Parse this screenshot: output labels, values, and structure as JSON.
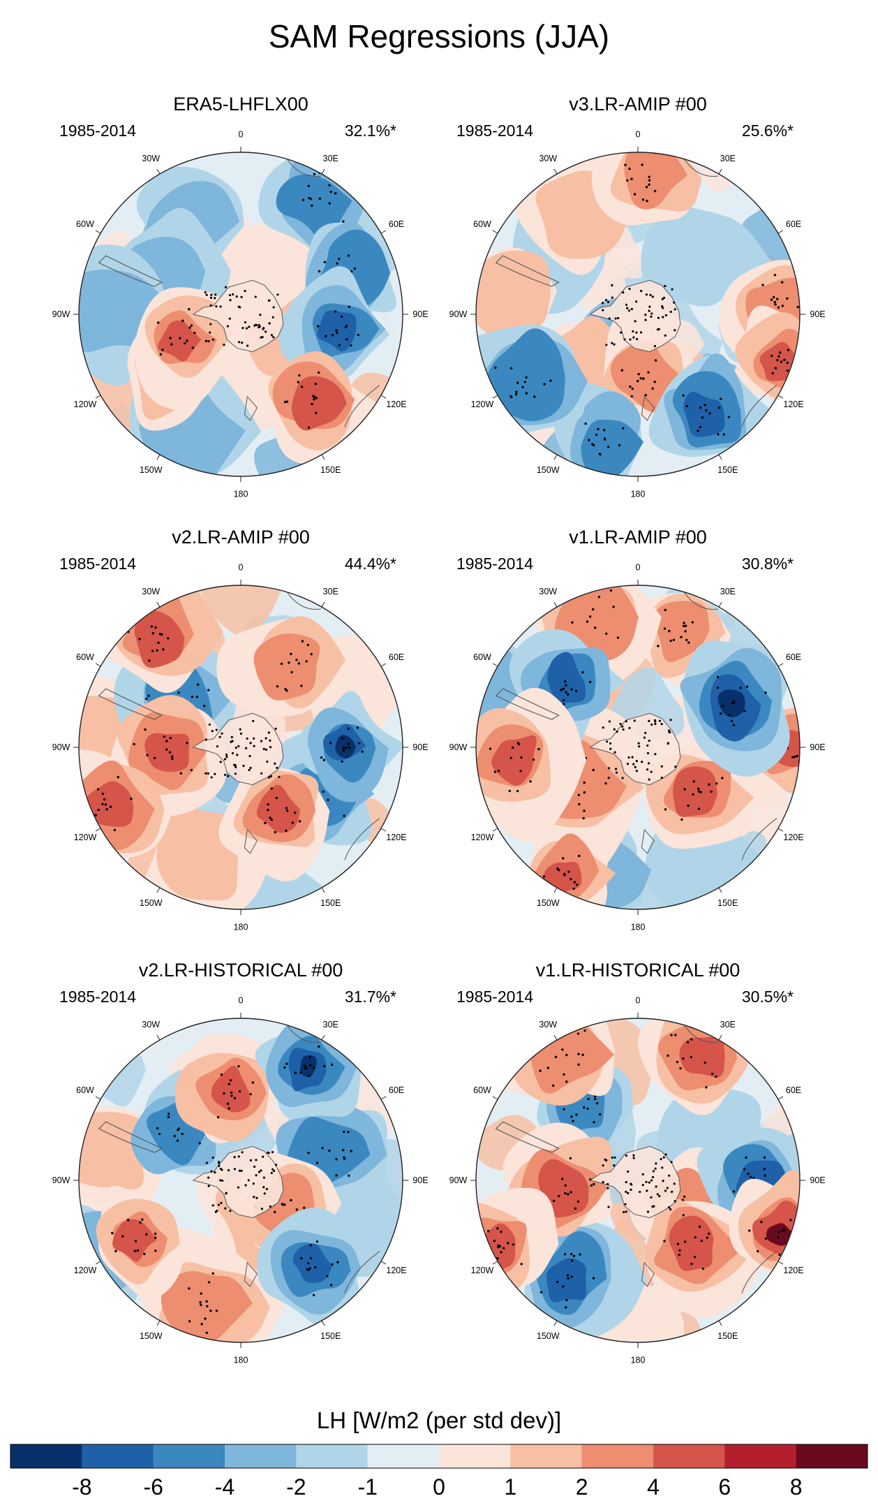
{
  "figure": {
    "title": "SAM Regressions (JJA)"
  },
  "longitude_labels": [
    "0",
    "30E",
    "60E",
    "90E",
    "120E",
    "150E",
    "180",
    "150W",
    "120W",
    "90W",
    "60W",
    "30W"
  ],
  "panels": [
    {
      "title": "ERA5-LHFLX00",
      "period": "1985-2014",
      "variance_explained": "32.1%*",
      "blobs": [
        {
          "lon": 35,
          "r": 0.85,
          "v": -4
        },
        {
          "lon": 70,
          "r": 0.7,
          "v": -4
        },
        {
          "lon": 100,
          "r": 0.6,
          "v": -6
        },
        {
          "lon": 140,
          "r": 0.7,
          "v": 6
        },
        {
          "lon": 110,
          "r": 0.35,
          "v": 2
        },
        {
          "lon": 250,
          "r": 0.4,
          "v": 6
        },
        {
          "lon": 205,
          "r": 0.8,
          "v": -2
        },
        {
          "lon": 330,
          "r": 0.65,
          "v": -2
        },
        {
          "lon": 300,
          "r": 0.5,
          "v": -2
        },
        {
          "lon": 180,
          "r": 0.35,
          "v": 1
        },
        {
          "lon": 270,
          "r": 0.8,
          "v": -2
        },
        {
          "lon": 5,
          "r": 0.3,
          "v": 1
        },
        {
          "lon": 230,
          "r": 0.55,
          "v": 2
        },
        {
          "lon": 45,
          "r": 0.35,
          "v": 1
        }
      ]
    },
    {
      "title": "v3.LR-AMIP  #00",
      "period": "1985-2014",
      "variance_explained": "25.6%*",
      "blobs": [
        {
          "lon": 5,
          "r": 0.85,
          "v": 4
        },
        {
          "lon": 85,
          "r": 0.85,
          "v": 4
        },
        {
          "lon": 110,
          "r": 0.95,
          "v": 6
        },
        {
          "lon": 175,
          "r": 0.4,
          "v": 4
        },
        {
          "lon": 145,
          "r": 0.75,
          "v": -6
        },
        {
          "lon": 195,
          "r": 0.8,
          "v": -4
        },
        {
          "lon": 240,
          "r": 0.8,
          "v": -4
        },
        {
          "lon": 280,
          "r": 0.8,
          "v": 2
        },
        {
          "lon": 330,
          "r": 0.75,
          "v": 2
        },
        {
          "lon": 300,
          "r": 0.55,
          "v": -1
        },
        {
          "lon": 50,
          "r": 0.5,
          "v": -1
        },
        {
          "lon": 230,
          "r": 0.45,
          "v": 2
        }
      ]
    },
    {
      "title": "v2.LR-AMIP  #00",
      "period": "1985-2014",
      "variance_explained": "44.4%*",
      "blobs": [
        {
          "lon": 90,
          "r": 0.65,
          "v": -8
        },
        {
          "lon": 120,
          "r": 0.6,
          "v": -4
        },
        {
          "lon": 150,
          "r": 0.45,
          "v": 6
        },
        {
          "lon": 265,
          "r": 0.45,
          "v": 6
        },
        {
          "lon": 245,
          "r": 0.9,
          "v": 6
        },
        {
          "lon": 325,
          "r": 0.85,
          "v": 6
        },
        {
          "lon": 310,
          "r": 0.5,
          "v": -4
        },
        {
          "lon": 30,
          "r": 0.6,
          "v": 4
        },
        {
          "lon": 200,
          "r": 0.75,
          "v": 2
        },
        {
          "lon": 180,
          "r": 0.85,
          "v": -1
        },
        {
          "lon": 60,
          "r": 0.8,
          "v": 1
        },
        {
          "lon": 280,
          "r": 0.85,
          "v": 2
        }
      ]
    },
    {
      "title": "v1.LR-AMIP  #00",
      "period": "1985-2014",
      "variance_explained": "30.8%*",
      "blobs": [
        {
          "lon": 65,
          "r": 0.65,
          "v": -8
        },
        {
          "lon": 90,
          "r": 0.9,
          "v": 6
        },
        {
          "lon": 130,
          "r": 0.45,
          "v": 6
        },
        {
          "lon": 310,
          "r": 0.6,
          "v": -6
        },
        {
          "lon": 265,
          "r": 0.75,
          "v": 6
        },
        {
          "lon": 235,
          "r": 0.45,
          "v": 4
        },
        {
          "lon": 200,
          "r": 0.8,
          "v": -2
        },
        {
          "lon": 150,
          "r": 0.8,
          "v": -1
        },
        {
          "lon": 20,
          "r": 0.75,
          "v": 4
        },
        {
          "lon": 340,
          "r": 0.85,
          "v": 4
        },
        {
          "lon": 210,
          "r": 0.9,
          "v": 6
        },
        {
          "lon": 290,
          "r": 0.9,
          "v": -2
        }
      ]
    },
    {
      "title": "v2.LR-HISTORICAL  #00",
      "period": "1985-2014",
      "variance_explained": "31.7%*",
      "blobs": [
        {
          "lon": 30,
          "r": 0.8,
          "v": -8
        },
        {
          "lon": 75,
          "r": 0.55,
          "v": -4
        },
        {
          "lon": 110,
          "r": 0.8,
          "v": -1
        },
        {
          "lon": 140,
          "r": 0.7,
          "v": -6
        },
        {
          "lon": 120,
          "r": 0.3,
          "v": 4
        },
        {
          "lon": 195,
          "r": 0.8,
          "v": 4
        },
        {
          "lon": 240,
          "r": 0.75,
          "v": 6
        },
        {
          "lon": 355,
          "r": 0.55,
          "v": 6
        },
        {
          "lon": 310,
          "r": 0.5,
          "v": -4
        },
        {
          "lon": 280,
          "r": 0.85,
          "v": 2
        },
        {
          "lon": 240,
          "r": 0.95,
          "v": -2
        },
        {
          "lon": 150,
          "r": 0.3,
          "v": 2
        }
      ]
    },
    {
      "title": "v1.LR-HISTORICAL  #00",
      "period": "1985-2014",
      "variance_explained": "30.5%*",
      "blobs": [
        {
          "lon": 25,
          "r": 0.85,
          "v": 6
        },
        {
          "lon": 90,
          "r": 0.75,
          "v": -6
        },
        {
          "lon": 110,
          "r": 0.95,
          "v": 8
        },
        {
          "lon": 140,
          "r": 0.55,
          "v": 6
        },
        {
          "lon": 120,
          "r": 0.3,
          "v": 4
        },
        {
          "lon": 215,
          "r": 0.75,
          "v": -6
        },
        {
          "lon": 265,
          "r": 0.45,
          "v": 6
        },
        {
          "lon": 320,
          "r": 0.55,
          "v": -4
        },
        {
          "lon": 245,
          "r": 0.95,
          "v": 6
        },
        {
          "lon": 330,
          "r": 0.9,
          "v": 4
        },
        {
          "lon": 180,
          "r": 0.85,
          "v": 1
        },
        {
          "lon": 60,
          "r": 0.5,
          "v": -1
        }
      ]
    }
  ],
  "colorbar": {
    "title": "LH [W/m2 (per std dev)]",
    "tick_labels": [
      "-8",
      "-6",
      "-4",
      "-2",
      "-1",
      "0",
      "1",
      "2",
      "4",
      "6",
      "8"
    ],
    "bin_colors": [
      "#08306b",
      "#1f61a8",
      "#3b88c0",
      "#7fb6db",
      "#b1d5e8",
      "#e3eef4",
      "#fbe4da",
      "#f7bfa4",
      "#ec8e6f",
      "#d5554a",
      "#b51f2d",
      "#6a0a1f"
    ]
  },
  "value_colors": {
    "-8": "#08306b",
    "-6": "#1f61a8",
    "-4": "#3b88c0",
    "-2": "#7fb6db",
    "-1": "#b1d5e8",
    "0": "#e3eef4",
    "1": "#fbe4da",
    "2": "#f7bfa4",
    "4": "#ec8e6f",
    "6": "#d5554a",
    "8": "#6a0a1f"
  }
}
